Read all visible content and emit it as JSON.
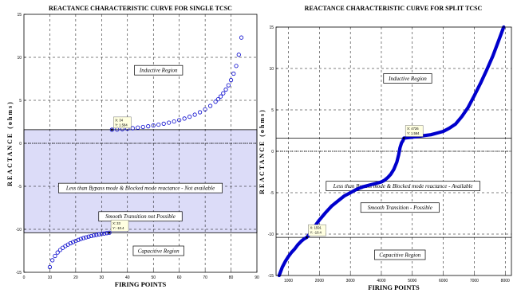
{
  "chart_data": [
    {
      "type": "scatter",
      "title": "REACTANCE CHARACTERISTIC CURVE FOR SINGLE TCSC",
      "xlabel": "FIRING POINTS",
      "ylabel": "REACTANCE (ohms)",
      "xlim": [
        0,
        90
      ],
      "ylim": [
        -15,
        15
      ],
      "xticks": [
        "0",
        "10",
        "20",
        "30",
        "40",
        "50",
        "60",
        "70",
        "80",
        "90"
      ],
      "yticks": [
        "15",
        "10",
        "5",
        "0",
        "-5",
        "-10",
        "-15"
      ],
      "grid": true,
      "marker": "circle",
      "color": "#0000cc",
      "shaded_region": {
        "ymin": -10.4,
        "ymax": 1.584,
        "color": "#dcdcf8"
      },
      "zero_dotted_line": true,
      "series": [
        {
          "values": [
            [
              34,
              1.584
            ],
            [
              36,
              1.6
            ],
            [
              38,
              1.65
            ],
            [
              40,
              1.7
            ],
            [
              42,
              1.76
            ],
            [
              44,
              1.83
            ],
            [
              46,
              1.9
            ],
            [
              48,
              1.98
            ],
            [
              50,
              2.07
            ],
            [
              52,
              2.17
            ],
            [
              54,
              2.28
            ],
            [
              56,
              2.4
            ],
            [
              58,
              2.54
            ],
            [
              60,
              2.7
            ],
            [
              62,
              2.88
            ],
            [
              64,
              3.09
            ],
            [
              66,
              3.33
            ],
            [
              68,
              3.61
            ],
            [
              70,
              3.95
            ],
            [
              72,
              4.35
            ],
            [
              74,
              4.84
            ],
            [
              75,
              5.12
            ],
            [
              76,
              5.45
            ],
            [
              77,
              5.82
            ],
            [
              78,
              6.25
            ],
            [
              79,
              6.75
            ],
            [
              80,
              7.35
            ],
            [
              81,
              8.1
            ],
            [
              82,
              9.0
            ],
            [
              83,
              10.3
            ],
            [
              84,
              12.3
            ]
          ]
        },
        {
          "values": [
            [
              10,
              -14.4
            ],
            [
              11,
              -13.6
            ],
            [
              12,
              -13.1
            ],
            [
              13,
              -12.7
            ],
            [
              14,
              -12.4
            ],
            [
              15,
              -12.15
            ],
            [
              16,
              -11.95
            ],
            [
              17,
              -11.78
            ],
            [
              18,
              -11.62
            ],
            [
              19,
              -11.48
            ],
            [
              20,
              -11.35
            ],
            [
              21,
              -11.23
            ],
            [
              22,
              -11.12
            ],
            [
              23,
              -11.02
            ],
            [
              24,
              -10.93
            ],
            [
              25,
              -10.85
            ],
            [
              26,
              -10.78
            ],
            [
              27,
              -10.71
            ],
            [
              28,
              -10.65
            ],
            [
              29,
              -10.59
            ],
            [
              30,
              -10.54
            ],
            [
              31,
              -10.49
            ],
            [
              32,
              -10.44
            ],
            [
              33,
              -10.4
            ]
          ]
        }
      ],
      "datatips": [
        {
          "x": 34,
          "y": 1.584,
          "line1": "X: 34",
          "line2": "Y: 1.584"
        },
        {
          "x": 33,
          "y": -10.4,
          "line1": "X: 33",
          "line2": "Y: -10.4"
        }
      ],
      "annotations": [
        {
          "x": 52,
          "y": 8.5,
          "text": "Inductive Region"
        },
        {
          "x": 45,
          "y": -5.2,
          "text": "Less than Bypass mode & Blocked mode reactance - Not available"
        },
        {
          "x": 45,
          "y": -8.5,
          "text": "Smooth Transition not Possible"
        },
        {
          "x": 52,
          "y": -12.5,
          "text": "Capacitive Region"
        }
      ]
    },
    {
      "type": "line",
      "title": "REACTANCE CHARACTERISTIC CURVE FOR SPLIT TCSC",
      "xlabel": "FIRING POINTS",
      "ylabel": "REACTANCE (ohms)",
      "xlim": [
        600,
        8200
      ],
      "ylim": [
        -15,
        15
      ],
      "xticks": [
        "1000",
        "2000",
        "3000",
        "4000",
        "5000",
        "6000",
        "7000",
        "8000"
      ],
      "yticks": [
        "15",
        "10",
        "5",
        "0",
        "-5",
        "-10",
        "-15"
      ],
      "grid": true,
      "color": "#0000cc",
      "zero_dotted_line": true,
      "series": [
        {
          "values": [
            [
              700,
              -15
            ],
            [
              800,
              -14.0
            ],
            [
              900,
              -13.3
            ],
            [
              1000,
              -12.7
            ],
            [
              1100,
              -12.2
            ],
            [
              1200,
              -11.8
            ],
            [
              1300,
              -11.3
            ],
            [
              1400,
              -10.9
            ],
            [
              1500,
              -10.6
            ],
            [
              1591,
              -10.4
            ],
            [
              1700,
              -9.9
            ],
            [
              1800,
              -9.4
            ],
            [
              1900,
              -8.8
            ],
            [
              2000,
              -8.3
            ],
            [
              2200,
              -7.4
            ],
            [
              2400,
              -6.6
            ],
            [
              2600,
              -6.0
            ],
            [
              2800,
              -5.4
            ],
            [
              3000,
              -5.0
            ],
            [
              3200,
              -4.6
            ],
            [
              3400,
              -4.3
            ],
            [
              3600,
              -4.1
            ],
            [
              3800,
              -3.9
            ],
            [
              4000,
              -3.7
            ],
            [
              4100,
              -3.5
            ],
            [
              4200,
              -3.2
            ],
            [
              4300,
              -2.8
            ],
            [
              4400,
              -2.2
            ],
            [
              4500,
              -1.3
            ],
            [
              4560,
              -0.4
            ],
            [
              4600,
              0.4
            ],
            [
              4650,
              1.0
            ],
            [
              4700,
              1.3
            ],
            [
              4726,
              1.584
            ],
            [
              4800,
              1.62
            ],
            [
              5000,
              1.7
            ],
            [
              5200,
              1.8
            ],
            [
              5400,
              1.9
            ],
            [
              5600,
              2.0
            ],
            [
              5800,
              2.2
            ],
            [
              6000,
              2.4
            ],
            [
              6200,
              2.8
            ],
            [
              6400,
              3.3
            ],
            [
              6600,
              4.2
            ],
            [
              6800,
              5.3
            ],
            [
              7000,
              6.7
            ],
            [
              7200,
              8.2
            ],
            [
              7400,
              9.8
            ],
            [
              7600,
              11.5
            ],
            [
              7800,
              13.5
            ],
            [
              7950,
              15.0
            ]
          ]
        }
      ],
      "datatips": [
        {
          "x": 4726,
          "y": 1.584,
          "line1": "X: 4726",
          "line2": "Y: 1.584"
        },
        {
          "x": 1591,
          "y": -10.4,
          "line1": "X: 1591",
          "line2": "Y: -10.4"
        }
      ],
      "annotations": [
        {
          "x": 4850,
          "y": 8.8,
          "text": "Inductive Region"
        },
        {
          "x": 4700,
          "y": -4.2,
          "text": "Less than Bypass mode & Blocked mode reactance - Available"
        },
        {
          "x": 4600,
          "y": -6.8,
          "text": "Smooth Transition - Possible"
        },
        {
          "x": 4600,
          "y": -12.5,
          "text": "Capacitive Region"
        }
      ]
    }
  ]
}
